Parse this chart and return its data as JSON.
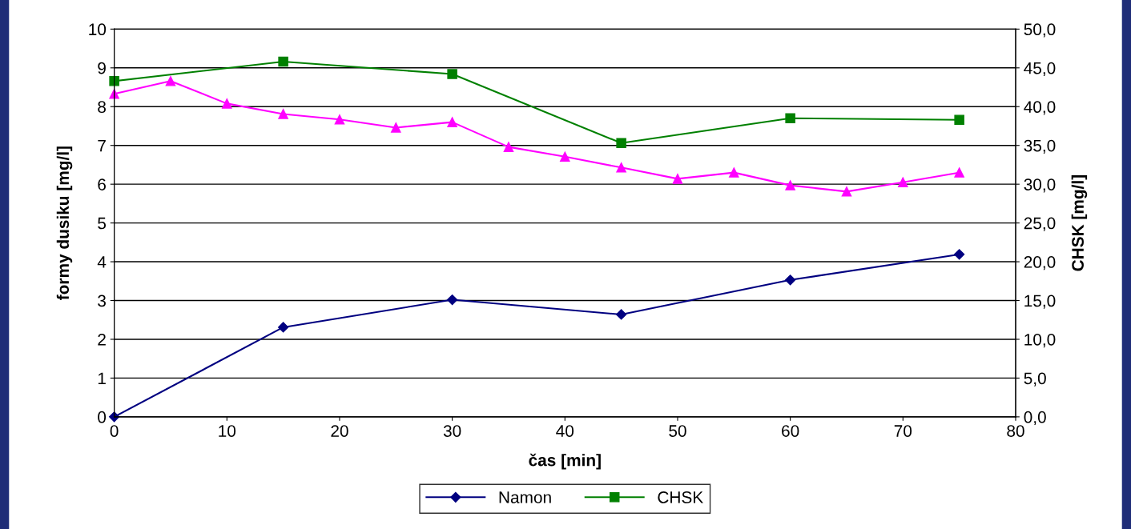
{
  "chart_data": {
    "type": "line",
    "xlabel": "čas [min]",
    "ylabel": "formy dusiku [mg/l]",
    "y2label": "CHSK [mg/l]",
    "xlim": [
      0,
      80
    ],
    "xticks": [
      0,
      10,
      20,
      30,
      40,
      50,
      60,
      70,
      80
    ],
    "ylim": [
      0,
      10
    ],
    "yticks": [
      0,
      1,
      2,
      3,
      4,
      5,
      6,
      7,
      8,
      9,
      10
    ],
    "y2lim": [
      0,
      50
    ],
    "y2ticks": [
      {
        "value": 0,
        "label": "0,0"
      },
      {
        "value": 5,
        "label": "5,0"
      },
      {
        "value": 10,
        "label": "10,0"
      },
      {
        "value": 15,
        "label": "15,0"
      },
      {
        "value": 20,
        "label": "20,0"
      },
      {
        "value": 25,
        "label": "25,0"
      },
      {
        "value": 30,
        "label": "30,0"
      },
      {
        "value": 35,
        "label": "35,0"
      },
      {
        "value": 40,
        "label": "40,0"
      },
      {
        "value": 45,
        "label": "45,0"
      },
      {
        "value": 50,
        "label": "50,0"
      }
    ],
    "grid": "y",
    "legend": "bottom",
    "series": [
      {
        "name": "Namon",
        "color": "#000080",
        "marker": "diamond",
        "x": [
          0,
          15,
          30,
          45,
          60,
          75
        ],
        "values": [
          0,
          2.31,
          3.02,
          2.64,
          3.53,
          4.19
        ]
      },
      {
        "color": "#ff00ff",
        "marker": "triangle",
        "x": [
          0,
          5,
          10,
          15,
          20,
          25,
          30,
          35,
          40,
          45,
          50,
          55,
          60,
          65,
          70,
          75
        ],
        "values": [
          8.33,
          8.66,
          8.08,
          7.81,
          7.67,
          7.46,
          7.6,
          6.96,
          6.71,
          6.43,
          6.14,
          6.3,
          5.97,
          5.81,
          6.05,
          6.3
        ]
      },
      {
        "name": "CHSK",
        "color": "#008000",
        "marker": "square",
        "axis": "y2",
        "x": [
          0,
          15,
          30,
          45,
          60,
          75
        ],
        "values": [
          43.3,
          45.8,
          44.2,
          35.3,
          38.5,
          38.3
        ]
      }
    ]
  }
}
